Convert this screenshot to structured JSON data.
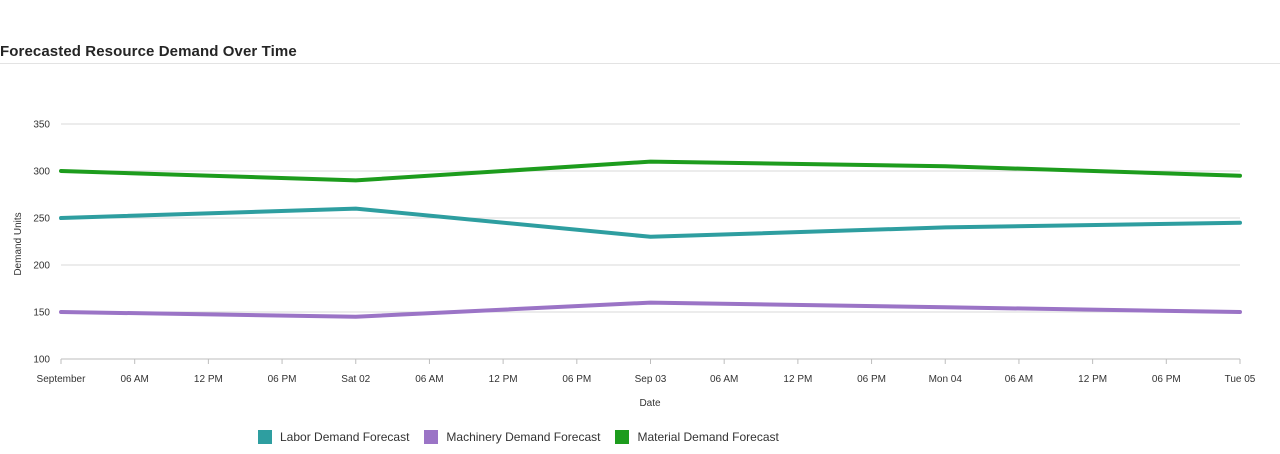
{
  "panel": {
    "title": "Forecasted Resource Demand Over Time"
  },
  "chart_data": {
    "type": "line",
    "title": "Forecasted Resource Demand Over Time",
    "xlabel": "Date",
    "ylabel": "Demand Units",
    "x": [
      "2024-09-01",
      "2024-09-02",
      "2024-09-03",
      "2024-09-04",
      "2024-09-05"
    ],
    "xlim": [
      "2024-09-01 00:00",
      "2024-09-05 00:00"
    ],
    "x_tick_labels": [
      "September",
      "06 AM",
      "12 PM",
      "06 PM",
      "Sat 02",
      "06 AM",
      "12 PM",
      "06 PM",
      "Sep 03",
      "06 AM",
      "12 PM",
      "06 PM",
      "Mon 04",
      "06 AM",
      "12 PM",
      "06 PM",
      "Tue 05"
    ],
    "ylim": [
      100,
      350
    ],
    "y_ticks": [
      100,
      150,
      200,
      250,
      300,
      350
    ],
    "grid": true,
    "legend": "bottom",
    "series": [
      {
        "name": "Labor Demand Forecast",
        "color": "#2e9ea0",
        "values": [
          250,
          260,
          230,
          240,
          245
        ]
      },
      {
        "name": "Machinery Demand Forecast",
        "color": "#9b74c6",
        "values": [
          150,
          145,
          160,
          155,
          150
        ]
      },
      {
        "name": "Material Demand Forecast",
        "color": "#1d9c1d",
        "values": [
          300,
          290,
          310,
          305,
          295
        ]
      }
    ]
  }
}
